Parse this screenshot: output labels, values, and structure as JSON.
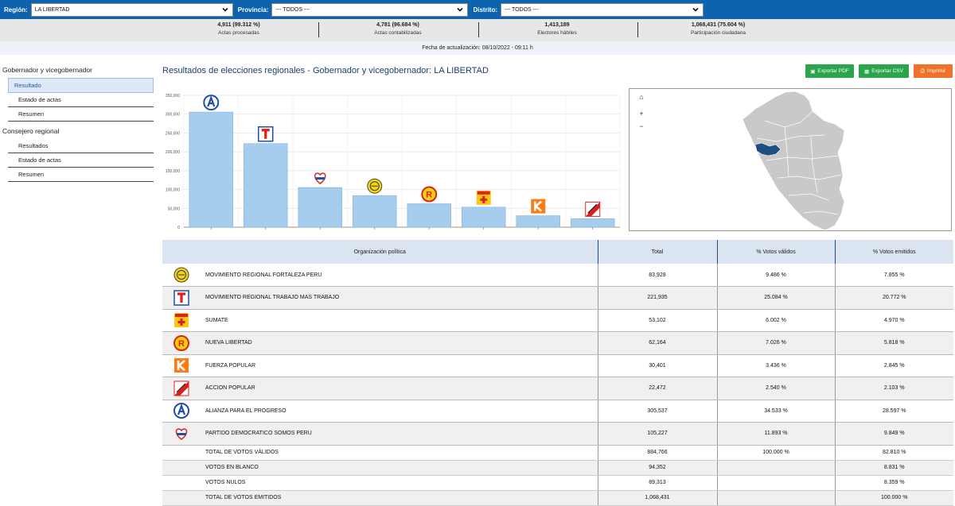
{
  "filters": {
    "region": {
      "label": "Región:",
      "value": "LA LIBERTAD"
    },
    "provincia": {
      "label": "Provincia:",
      "value": "--- TODOS ---"
    },
    "distrito": {
      "label": "Distrito:",
      "value": "--- TODOS ---"
    }
  },
  "stats": [
    {
      "value": "4,911 (99.312 %)",
      "label": "Actas procesadas"
    },
    {
      "value": "4,781 (96.684 %)",
      "label": "Actas contabilizadas"
    },
    {
      "value": "1,413,189",
      "label": "Electores hábiles"
    },
    {
      "value": "1,068,431 (75.604 %)",
      "label": "Participación ciudadana"
    }
  ],
  "update_text": "Fecha de actualización: 08/10/2022 - 09:11 h",
  "sidebar": {
    "group1": "Gobernador y vicegobernador",
    "group1_items": [
      "Resultado",
      "Estado de actas",
      "Resumen"
    ],
    "group2": "Consejero regional",
    "group2_items": [
      "Resultados",
      "Estado de actas",
      "Resumen"
    ]
  },
  "title": "Resultados de elecciones regionales - Gobernador y vicegobernador: LA LIBERTAD",
  "buttons": {
    "pdf": "Exportar PDF",
    "csv": "Exportar CSV",
    "print": "Imprimir"
  },
  "colors": {
    "bar": "#a7cdee",
    "bar_stroke": "#7fb2e0",
    "header_bg": "#0d63ad",
    "selected_region": "#1f4e82",
    "map_fill": "#c9c9c9"
  },
  "chart_data": {
    "type": "bar",
    "categories": [
      "A",
      "T",
      "SOMOS PERU",
      "FORTALEZA",
      "R",
      "SUMATE",
      "K",
      "AP"
    ],
    "values": [
      305537,
      221935,
      105227,
      83928,
      62164,
      53102,
      30401,
      22472
    ],
    "logo_icons": [
      "app-logo-icon",
      "trabajo-logo-icon",
      "somos-peru-logo-icon",
      "fortaleza-logo-icon",
      "nueva-libertad-logo-icon",
      "sumate-logo-icon",
      "fuerza-popular-logo-icon",
      "accion-popular-logo-icon"
    ],
    "yticks": [
      "350,000",
      "300,000",
      "250,000",
      "200,000",
      "150,000",
      "100,000",
      "50,000",
      "0"
    ],
    "ylim": [
      0,
      350000
    ],
    "grid": true
  },
  "map_controls": {
    "home": "⌂",
    "zoom_in": "+",
    "zoom_out": "−"
  },
  "table": {
    "headers": [
      "Organización política",
      "Total",
      "% Votos válidos",
      "% Votos emitidos"
    ],
    "rows": [
      {
        "logo": "fortaleza-logo-icon",
        "name": "MOVIMIENTO REGIONAL FORTALEZA PERU",
        "total": "83,928",
        "validos": "9.486 %",
        "emitidos": "7.855 %"
      },
      {
        "logo": "trabajo-logo-icon",
        "name": "MOVIMIENTO REGIONAL TRABAJO MAS TRABAJO",
        "total": "221,935",
        "validos": "25.084 %",
        "emitidos": "20.772 %"
      },
      {
        "logo": "sumate-logo-icon",
        "name": "SUMATE",
        "total": "53,102",
        "validos": "6.002 %",
        "emitidos": "4.970 %"
      },
      {
        "logo": "nueva-libertad-logo-icon",
        "name": "NUEVA LIBERTAD",
        "total": "62,164",
        "validos": "7.026 %",
        "emitidos": "5.818 %"
      },
      {
        "logo": "fuerza-popular-logo-icon",
        "name": "FUERZA POPULAR",
        "total": "30,401",
        "validos": "3.436 %",
        "emitidos": "2.845 %"
      },
      {
        "logo": "accion-popular-logo-icon",
        "name": "ACCION POPULAR",
        "total": "22,472",
        "validos": "2.540 %",
        "emitidos": "2.103 %"
      },
      {
        "logo": "app-logo-icon",
        "name": "ALIANZA PARA EL PROGRESO",
        "total": "305,537",
        "validos": "34.533 %",
        "emitidos": "28.597 %"
      },
      {
        "logo": "somos-peru-logo-icon",
        "name": "PARTIDO DEMOCRATICO SOMOS PERU",
        "total": "105,227",
        "validos": "11.893 %",
        "emitidos": "9.849 %"
      }
    ],
    "summary": [
      {
        "name": "TOTAL DE VOTOS VÁLIDOS",
        "total": "884,766",
        "validos": "100.000 %",
        "emitidos": "82.810 %"
      },
      {
        "name": "VOTOS EN BLANCO",
        "total": "94,352",
        "validos": "",
        "emitidos": "8.831 %"
      },
      {
        "name": "VOTOS NULOS",
        "total": "89,313",
        "validos": "",
        "emitidos": "8.359 %"
      },
      {
        "name": "TOTAL DE VOTOS EMITIDOS",
        "total": "1,068,431",
        "validos": "",
        "emitidos": "100.000 %"
      }
    ]
  }
}
